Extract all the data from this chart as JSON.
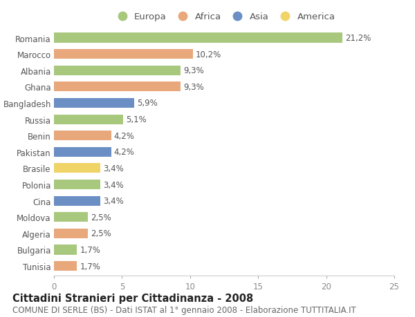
{
  "countries": [
    "Romania",
    "Marocco",
    "Albania",
    "Ghana",
    "Bangladesh",
    "Russia",
    "Benin",
    "Pakistan",
    "Brasile",
    "Polonia",
    "Cina",
    "Moldova",
    "Algeria",
    "Bulgaria",
    "Tunisia"
  ],
  "values": [
    21.2,
    10.2,
    9.3,
    9.3,
    5.9,
    5.1,
    4.2,
    4.2,
    3.4,
    3.4,
    3.4,
    2.5,
    2.5,
    1.7,
    1.7
  ],
  "continents": [
    "Europa",
    "Africa",
    "Europa",
    "Africa",
    "Asia",
    "Europa",
    "Africa",
    "Asia",
    "America",
    "Europa",
    "Asia",
    "Europa",
    "Africa",
    "Europa",
    "Africa"
  ],
  "continent_colors": {
    "Europa": "#a8c87e",
    "Africa": "#e8a87c",
    "Asia": "#6b8ec4",
    "America": "#f0d468"
  },
  "legend_order": [
    "Europa",
    "Africa",
    "Asia",
    "America"
  ],
  "title": "Cittadini Stranieri per Cittadinanza - 2008",
  "subtitle": "COMUNE DI SERLE (BS) - Dati ISTAT al 1° gennaio 2008 - Elaborazione TUTTITALIA.IT",
  "xlim": [
    0,
    25
  ],
  "xticks": [
    0,
    5,
    10,
    15,
    20,
    25
  ],
  "background_color": "#ffffff",
  "bar_height": 0.6,
  "title_fontsize": 10.5,
  "subtitle_fontsize": 8.5,
  "label_fontsize": 8.5,
  "tick_fontsize": 8.5,
  "legend_fontsize": 9.5
}
